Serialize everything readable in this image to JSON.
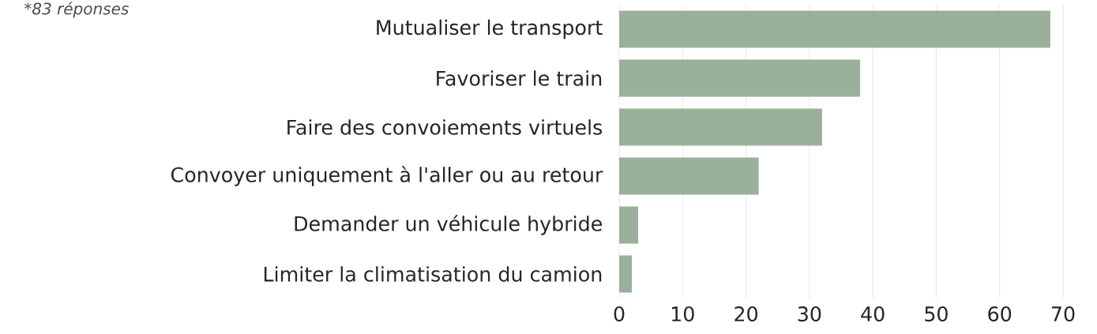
{
  "chart_data": {
    "type": "bar",
    "orientation": "horizontal",
    "annotations": [
      "*83 réponses"
    ],
    "categories": [
      "Mutualiser le transport",
      "Favoriser le train",
      "Faire des convoiements virtuels",
      "Convoyer uniquement à l'aller ou au retour",
      "Demander un véhicule hybride",
      "Limiter la climatisation du camion"
    ],
    "values": [
      68,
      38,
      32,
      22,
      3,
      2
    ],
    "color": "#9bb09b",
    "xlim": [
      0,
      70
    ],
    "xticks": [
      0,
      10,
      20,
      30,
      40,
      50,
      60,
      70
    ],
    "grid": "x"
  }
}
